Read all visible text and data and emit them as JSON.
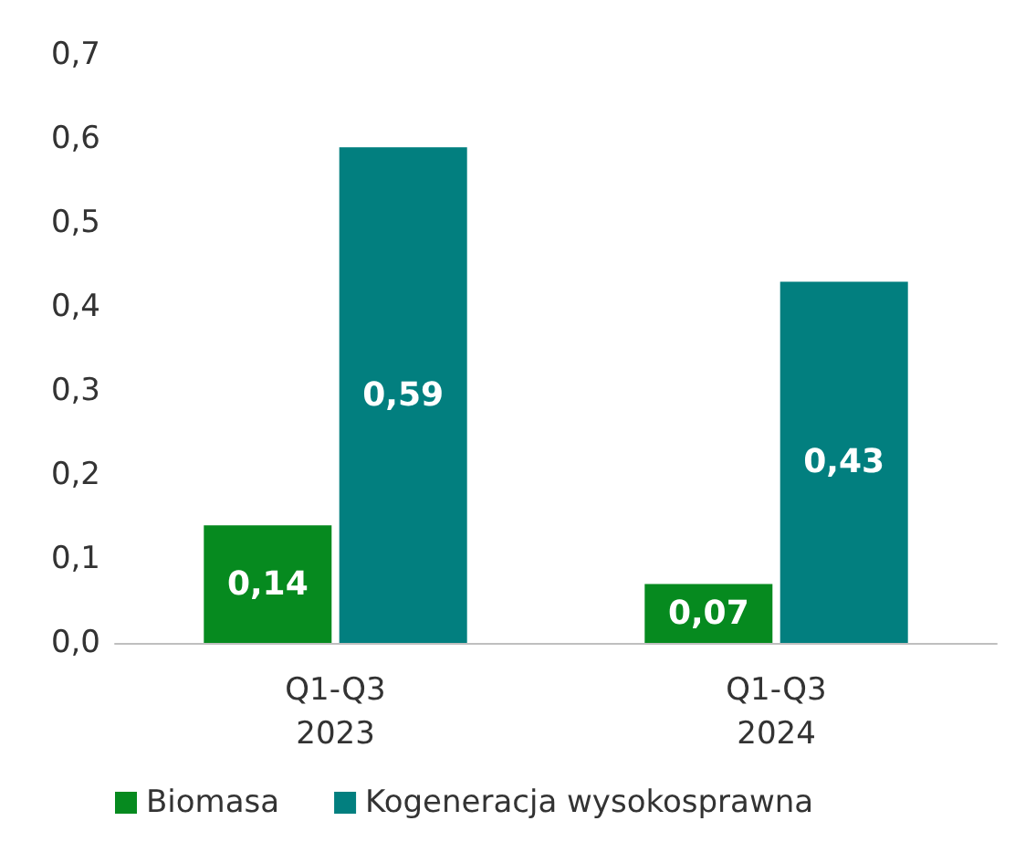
{
  "chart_data": {
    "type": "bar",
    "categories": [
      "Q1-Q3\n2023",
      "Q1-Q3\n2024"
    ],
    "series": [
      {
        "name": "Biomasa",
        "color": "#068a1f",
        "values": [
          0.14,
          0.07
        ],
        "value_labels": [
          "0,14",
          "0,07"
        ]
      },
      {
        "name": "Kogeneracja wysokosprawna",
        "color": "#027f7f",
        "values": [
          0.59,
          0.43
        ],
        "value_labels": [
          "0,59",
          "0,43"
        ]
      }
    ],
    "ylim": [
      0,
      0.7
    ],
    "yticks": [
      {
        "value": 0,
        "label": "0,0"
      },
      {
        "value": 0.1,
        "label": "0,1"
      },
      {
        "value": 0.2,
        "label": "0,2"
      },
      {
        "value": 0.3,
        "label": "0,3"
      },
      {
        "value": 0.4,
        "label": "0,4"
      },
      {
        "value": 0.5,
        "label": "0,5"
      },
      {
        "value": 0.6,
        "label": "0,6"
      },
      {
        "value": 0.7,
        "label": "0,7"
      }
    ],
    "grid": false,
    "legend": "bottom"
  }
}
